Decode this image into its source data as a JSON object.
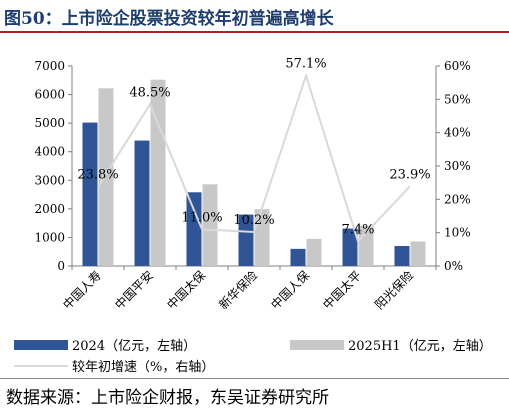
{
  "title": "图50：上市险企股票投资较年初普遍高增长",
  "source": "数据来源：上市险企财报，东吴证券研究所",
  "chart_data": {
    "type": "bar",
    "categories": [
      "中国人寿",
      "中国平安",
      "中国太保",
      "新华保险",
      "中国人保",
      "中国太平",
      "阳光保险"
    ],
    "series": [
      {
        "name": "2024（亿元，左轴）",
        "kind": "bar",
        "axis": "left",
        "color": "#2f5597",
        "values": [
          5020,
          4390,
          2580,
          1800,
          600,
          1310,
          700
        ]
      },
      {
        "name": "2025H1（亿元，左轴）",
        "kind": "bar",
        "axis": "left",
        "color": "#c8c8c8",
        "values": [
          6220,
          6520,
          2860,
          1990,
          950,
          1410,
          860
        ]
      },
      {
        "name": "较年初增速（%，右轴）",
        "kind": "line",
        "axis": "right",
        "color": "#d9d9d9",
        "values": [
          23.8,
          48.5,
          11.0,
          10.2,
          57.1,
          7.4,
          23.9
        ]
      }
    ],
    "data_labels": [
      "23.8%",
      "48.5%",
      "11.0%",
      "10.2%",
      "57.1%",
      "7.4%",
      "23.9%"
    ],
    "y_left": {
      "min": 0,
      "max": 7000,
      "ticks": [
        "0",
        "1000",
        "2000",
        "3000",
        "4000",
        "5000",
        "6000",
        "7000"
      ]
    },
    "y_right": {
      "min": 0,
      "max": 60,
      "ticks": [
        "0%",
        "10%",
        "20%",
        "30%",
        "40%",
        "50%",
        "60%"
      ]
    },
    "grid": false,
    "legend_position": "bottom"
  }
}
